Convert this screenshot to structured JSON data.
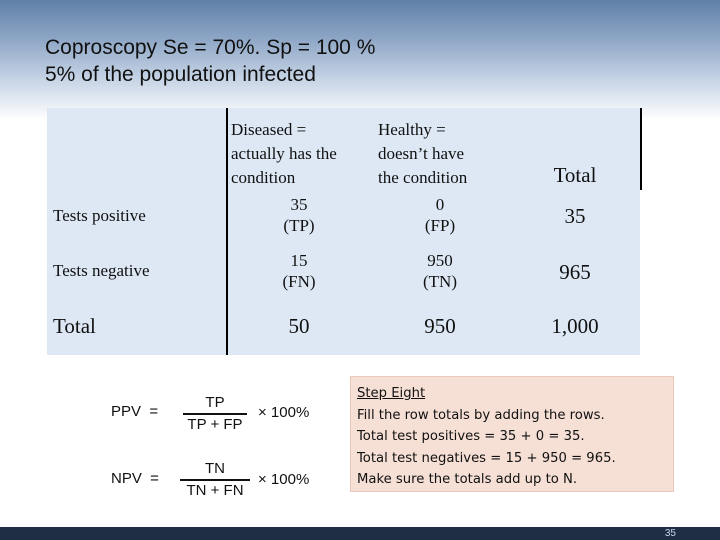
{
  "slide": {
    "title_line1": "Coproscopy Se = 70%. Sp = 100 %",
    "title_line2": "5% of the population infected"
  },
  "table": {
    "col_headers": {
      "diseased": [
        "Diseased =",
        "actually has the",
        "condition"
      ],
      "healthy": [
        "Healthy =",
        "doesn’t have",
        "the condition"
      ],
      "total": "Total"
    },
    "rows": [
      {
        "label": "Tests positive",
        "diseased": "35",
        "diseased_code": "(TP)",
        "healthy": "0",
        "healthy_code": "(FP)",
        "total": "35"
      },
      {
        "label": "Tests negative",
        "diseased": "15",
        "diseased_code": "(FN)",
        "healthy": "950",
        "healthy_code": "(TN)",
        "total": "965"
      }
    ],
    "total_row": {
      "label": "Total",
      "diseased": "50",
      "healthy": "950",
      "total": "1,000"
    }
  },
  "formulas": {
    "ppv": {
      "label": "PPV  =",
      "numerator": "TP",
      "denominator": "TP + FP",
      "multiplier": "× 100%"
    },
    "npv": {
      "label": "NPV  =",
      "numerator": "TN",
      "denominator": "TN + FN",
      "multiplier": "× 100%"
    }
  },
  "note": {
    "heading": "Step Eight",
    "lines": [
      "Fill the row totals by adding the rows.",
      "Total test positives = 35 + 0 = 35.",
      "Total test negatives = 15 + 950 = 965.",
      "Make sure the totals add up to N."
    ]
  },
  "page_number": "35"
}
